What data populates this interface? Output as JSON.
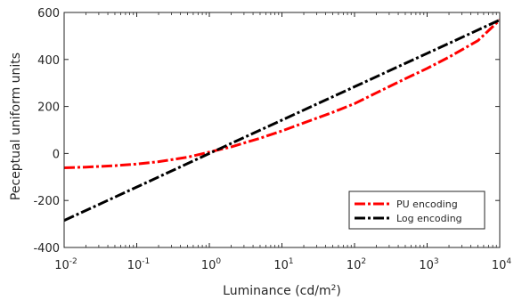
{
  "chart_data": {
    "type": "line",
    "xscale": "log",
    "xlim": [
      0.01,
      10000
    ],
    "ylim": [
      -400,
      600
    ],
    "grid": false,
    "legend_position": "bottom-right",
    "xlabel_main": "Luminance (cd/m",
    "xlabel_sup": "2",
    "xlabel_close": ")",
    "ylabel": "Peceptual uniform units",
    "xticks": [
      {
        "value": 0.01,
        "base": "10",
        "exp": "-2"
      },
      {
        "value": 0.1,
        "base": "10",
        "exp": "-1"
      },
      {
        "value": 1,
        "base": "10",
        "exp": "0"
      },
      {
        "value": 10,
        "base": "10",
        "exp": "1"
      },
      {
        "value": 100,
        "base": "10",
        "exp": "2"
      },
      {
        "value": 1000,
        "base": "10",
        "exp": "3"
      },
      {
        "value": 10000,
        "base": "10",
        "exp": "4"
      }
    ],
    "yticks": [
      {
        "value": -400,
        "label": "-400"
      },
      {
        "value": -200,
        "label": "-200"
      },
      {
        "value": 0,
        "label": "0"
      },
      {
        "value": 200,
        "label": "200"
      },
      {
        "value": 400,
        "label": "400"
      },
      {
        "value": 600,
        "label": "600"
      }
    ],
    "series": [
      {
        "name": "PU encoding",
        "color": "#ff0000",
        "dash": "dash-dot",
        "x": [
          0.01,
          0.02,
          0.05,
          0.1,
          0.2,
          0.5,
          1,
          2,
          5,
          10,
          20,
          50,
          100,
          200,
          500,
          1000,
          2000,
          5000,
          10000
        ],
        "y": [
          -61,
          -58,
          -52,
          -45,
          -35,
          -16,
          6,
          28,
          65,
          96,
          130,
          175,
          212,
          258,
          318,
          362,
          410,
          480,
          568
        ]
      },
      {
        "name": "Log encoding",
        "color": "#000000",
        "dash": "dash-dot",
        "x": [
          0.01,
          0.1,
          1,
          10,
          100,
          1000,
          10000
        ],
        "y": [
          -285,
          -143,
          0,
          142,
          284,
          426,
          568
        ]
      }
    ]
  }
}
